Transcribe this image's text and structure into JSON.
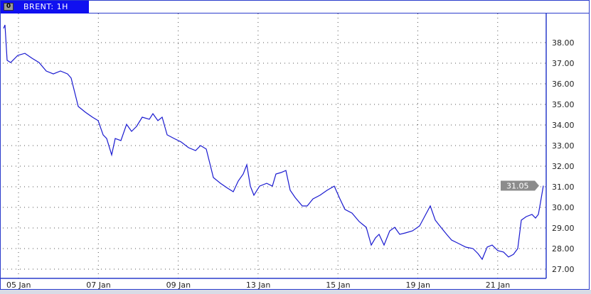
{
  "header": {
    "title": "BRENT: 1H",
    "icon": "window-menu-icon",
    "icon_text": "0"
  },
  "colors": {
    "line": "#1a1ad0",
    "frame": "#2a3ccc",
    "tab": "#1010f0",
    "last_price_bg": "#8c8c8c"
  },
  "chart_data": {
    "type": "line",
    "title": "BRENT: 1H",
    "x_tick_labels": [
      "05 Jan",
      "07 Jan",
      "09 Jan",
      "13 Jan",
      "15 Jan",
      "19 Jan",
      "21 Jan"
    ],
    "y_tick_labels": [
      "38.00",
      "37.00",
      "36.00",
      "35.00",
      "34.00",
      "33.00",
      "32.00",
      "31.00",
      "30.00",
      "29.00",
      "28.00",
      "27.00"
    ],
    "ylim": [
      26.6,
      39.4
    ],
    "grid": true,
    "last_price": "31.05",
    "series": [
      {
        "values": [
          38.69,
          38.86,
          37.14,
          37.03,
          37.38,
          37.48,
          37.24,
          37.03,
          36.62,
          36.48,
          36.62,
          36.48,
          36.28,
          35.59,
          34.9,
          34.62,
          34.38,
          34.21,
          33.52,
          33.34,
          32.55,
          33.34,
          33.24,
          34.03,
          33.69,
          33.93,
          34.38,
          34.28,
          34.55,
          34.21,
          34.38,
          33.52,
          33.34,
          33.17,
          32.9,
          32.76,
          33.0,
          32.83,
          32.14,
          31.45,
          31.17,
          30.93,
          30.76,
          31.28,
          31.62,
          32.07,
          31.03,
          30.59,
          31.03,
          31.17,
          31.03,
          31.62,
          31.69,
          31.79,
          30.83,
          30.48,
          30.07,
          30.07,
          30.41,
          30.59,
          30.83,
          31.03,
          30.41,
          29.9,
          29.72,
          29.31,
          29.03,
          28.17,
          28.52,
          28.69,
          28.17,
          28.86,
          29.03,
          28.69,
          28.76,
          28.86,
          29.1,
          29.55,
          30.07,
          29.38,
          29.03,
          28.69,
          28.41,
          28.24,
          28.07,
          28.0,
          27.76,
          27.48,
          28.07,
          28.17,
          27.9,
          27.83,
          27.59,
          27.72,
          28.0,
          29.38,
          29.55,
          29.66,
          29.48,
          29.66,
          30.24,
          31.05
        ]
      }
    ]
  }
}
